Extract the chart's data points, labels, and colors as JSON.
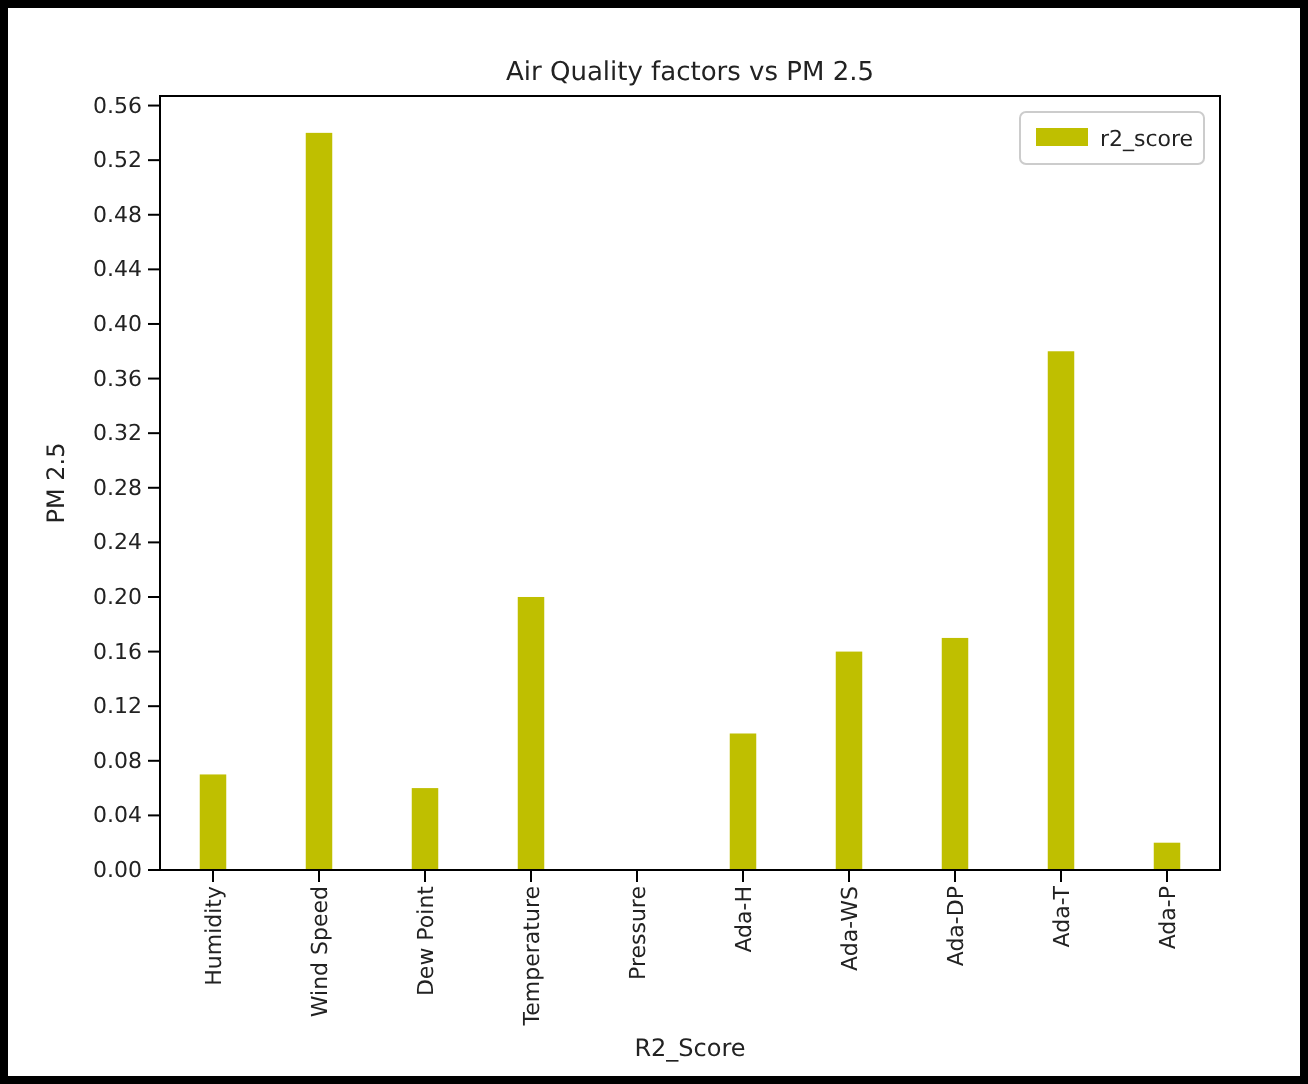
{
  "chart_data": {
    "type": "bar",
    "title": "Air Quality factors vs PM 2.5",
    "xlabel": "R2_Score",
    "ylabel": "PM 2.5",
    "categories": [
      "Humidity",
      "Wind Speed",
      "Dew Point",
      "Temperature",
      "Pressure",
      "Ada-H",
      "Ada-WS",
      "Ada-DP",
      "Ada-T",
      "Ada-P"
    ],
    "series": [
      {
        "name": "r2_score",
        "color": "#bfbf00",
        "values": [
          0.07,
          0.54,
          0.06,
          0.2,
          0,
          0.1,
          0.16,
          0.17,
          0.38,
          0.02
        ]
      }
    ],
    "ylim": [
      0,
      0.567
    ],
    "yticks": [
      {
        "value": 0,
        "label": "0.00"
      },
      0.04,
      0.08,
      0.12,
      0.16,
      {
        "value": 0.2,
        "label": "0.20"
      },
      0.24,
      0.28,
      0.32,
      0.36,
      {
        "value": 0.4,
        "label": "0.40"
      },
      0.44,
      0.48,
      0.52,
      0.56
    ],
    "legend": "top right",
    "grid": false
  }
}
